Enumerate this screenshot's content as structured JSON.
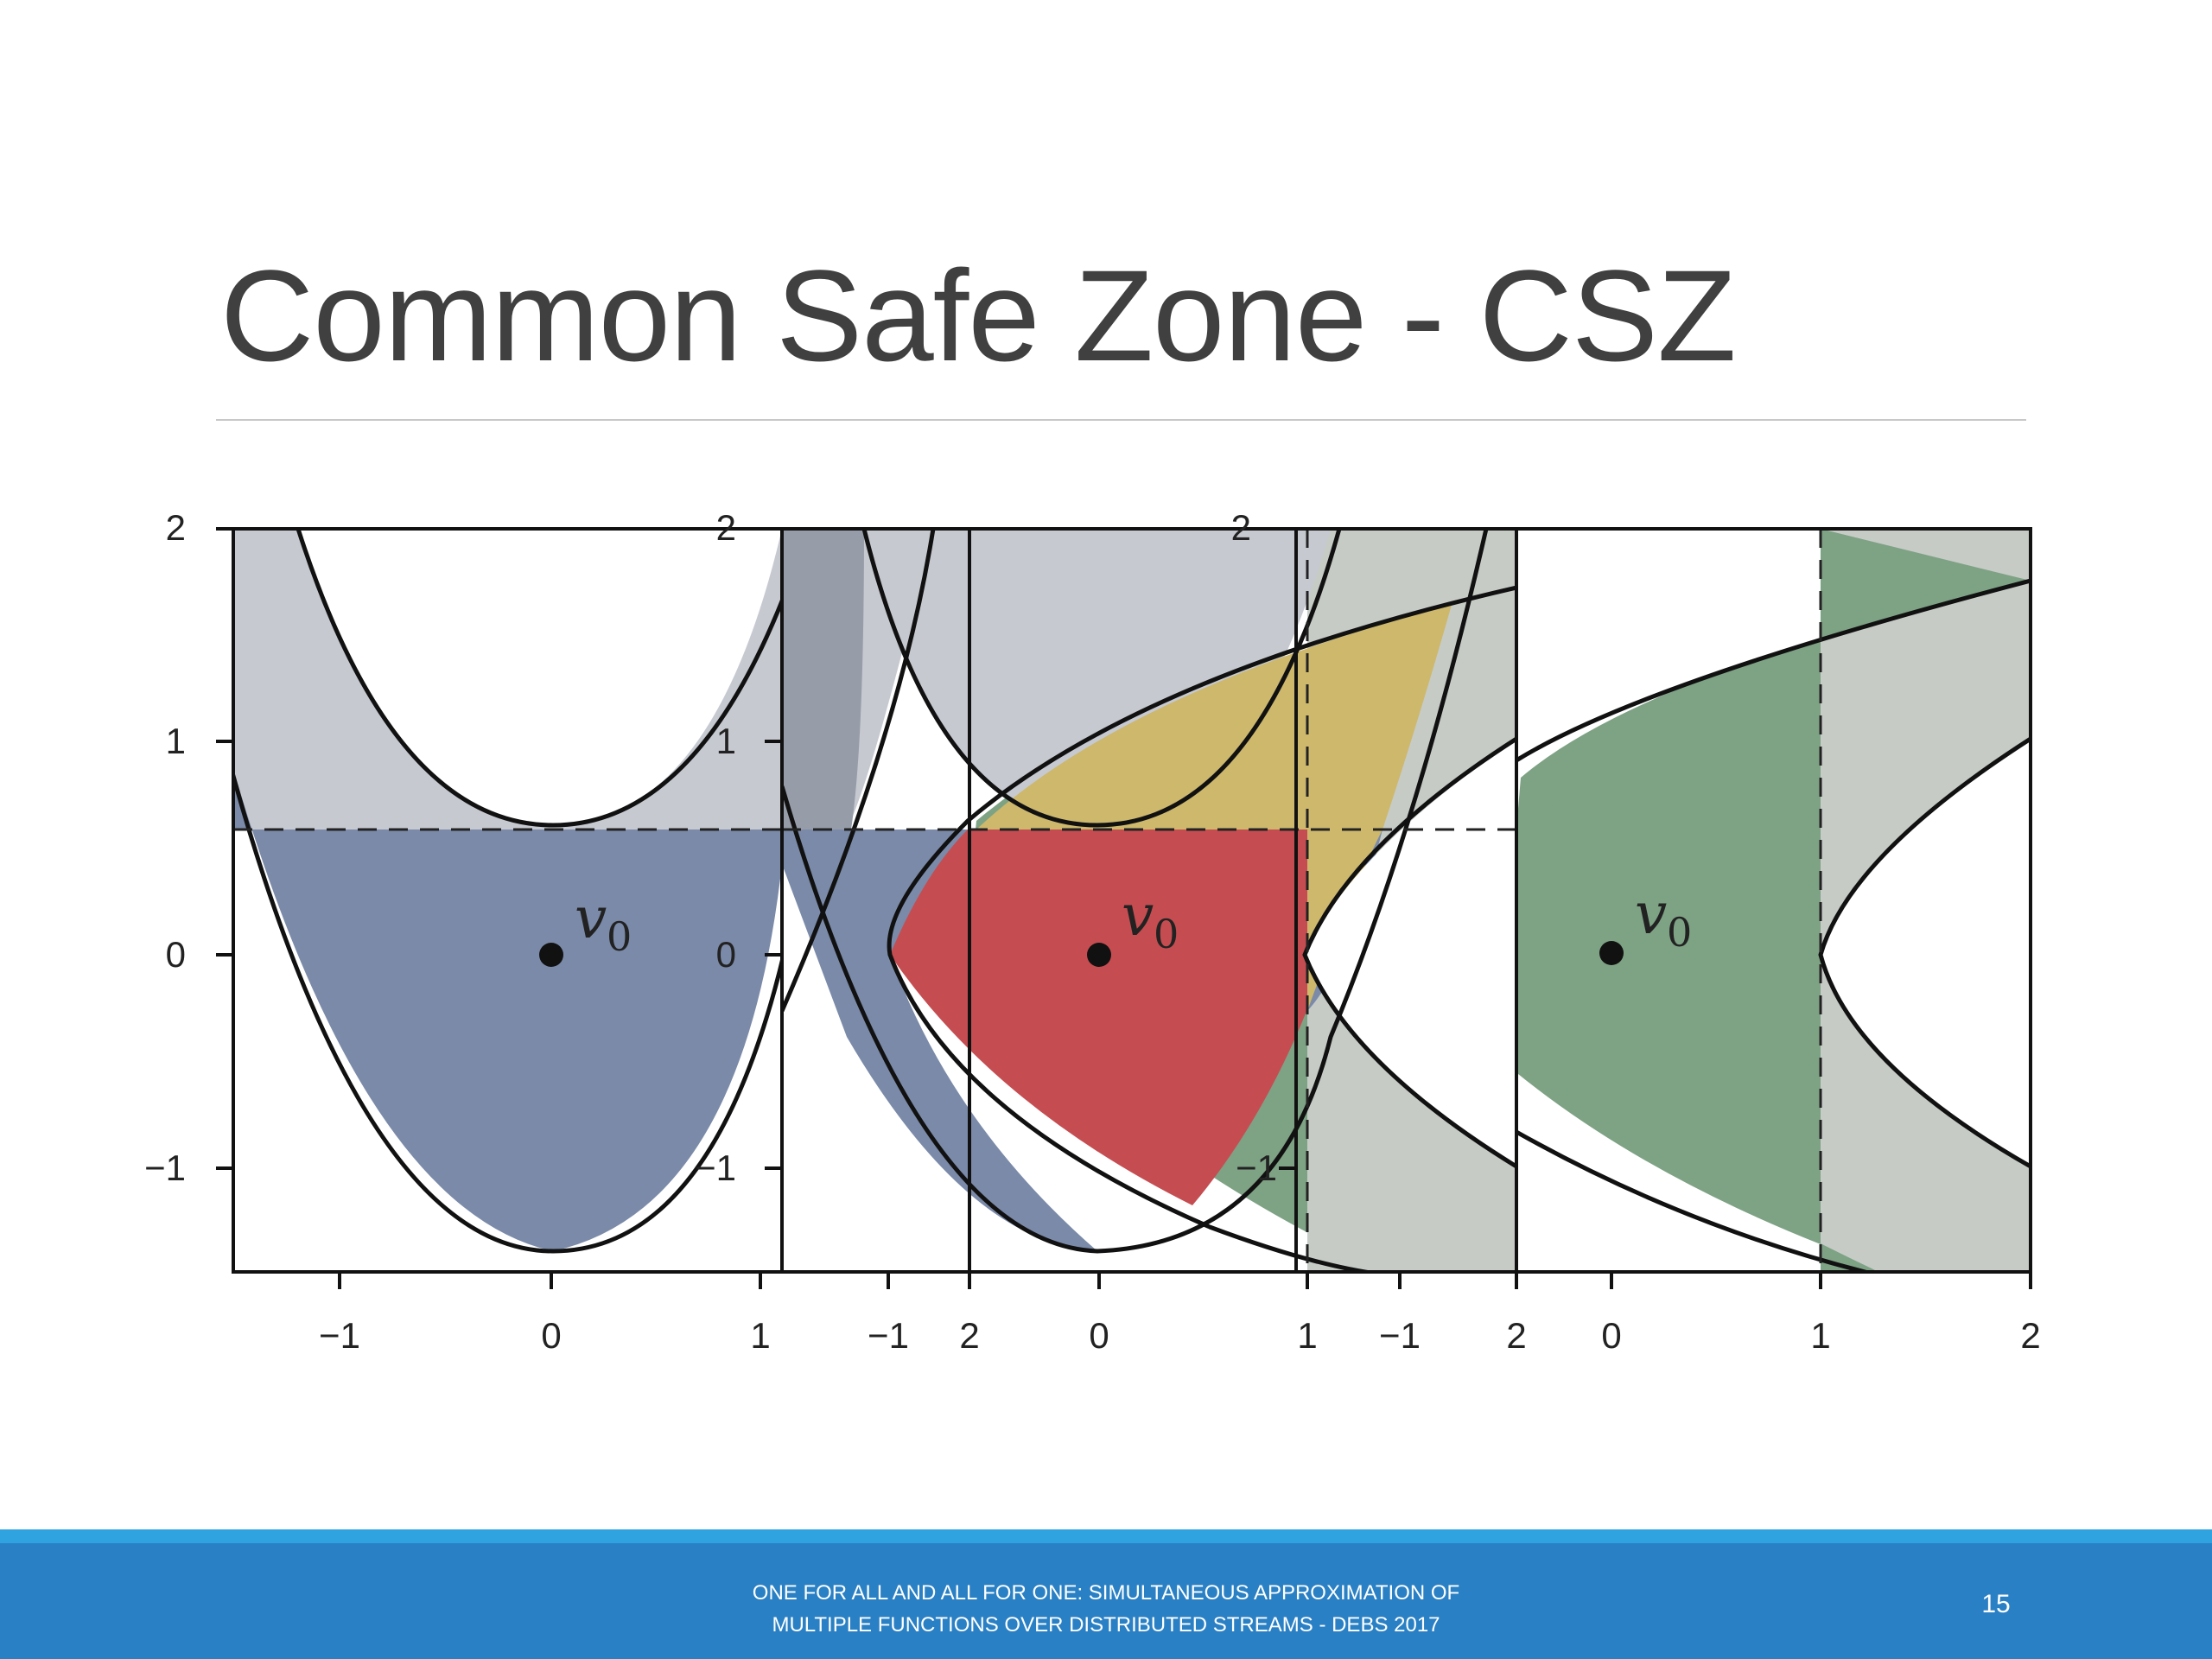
{
  "slide": {
    "title": "Common Safe Zone - CSZ",
    "footer_line1": "ONE FOR ALL AND ALL FOR ONE: SIMULTANEOUS APPROXIMATION OF",
    "footer_line2": "MULTIPLE FUNCTIONS OVER DISTRIBUTED STREAMS - DEBS 2017",
    "page_number": "15"
  },
  "figure": {
    "panels": [
      {
        "name": "left-panel",
        "x_ticks": [
          "−1",
          "0",
          "1"
        ],
        "y_ticks": [
          "2",
          "1",
          "0",
          "−1"
        ],
        "point_label": "v",
        "point_subscript": "0"
      },
      {
        "name": "middle-panel",
        "x_ticks": [
          "−1",
          "2",
          "0",
          "1"
        ],
        "y_ticks": [
          "2",
          "1",
          "0",
          "−1"
        ],
        "point_label": "v",
        "point_subscript": "0"
      },
      {
        "name": "right-panel",
        "x_ticks": [
          "−1",
          "2",
          "0",
          "1",
          "2"
        ],
        "y_ticks": [
          "2",
          "−1"
        ],
        "point_label": "v",
        "point_subscript": "0"
      }
    ],
    "colors": {
      "blue": "#7a8aa8",
      "gray": "#c6c9d0",
      "green": "#7ea284",
      "red": "#c54d51",
      "yellow": "#cdb86c",
      "greygreen": "#c6cbc6"
    }
  }
}
